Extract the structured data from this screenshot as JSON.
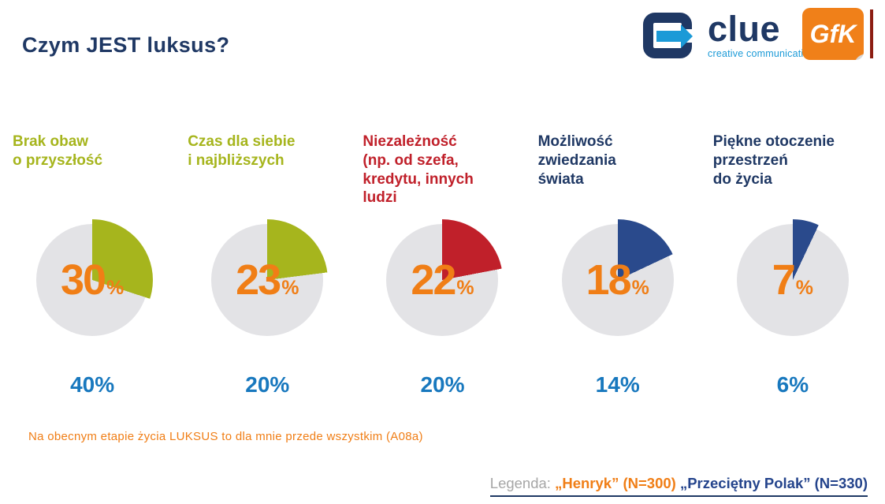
{
  "page": {
    "title": "Czym JEST luksus?"
  },
  "logos": {
    "clue_name": "clue",
    "clue_tagline": "creative communication",
    "gfk_name": "GfK"
  },
  "labels": {
    "percent": "%"
  },
  "colors": {
    "navy": "#1f3864",
    "olive": "#a6b51d",
    "red": "#c0202a",
    "wedge_navy": "#2a4a8c",
    "orange": "#f07e16",
    "blue": "#1878be",
    "pie_gray": "#e3e3e6",
    "legend_gray": "#a6a6a6",
    "clue_blue": "#1b9ad7",
    "gfk_orange": "#f08019",
    "legend_blue": "#24448c",
    "gfk_bar": "#8c1d12"
  },
  "chart_data": {
    "type": "pie",
    "title": "Czym JEST luksus?",
    "legend_position": "bottom-right",
    "categories": [
      "Brak obaw o przyszłość",
      "Czas dla siebie i najbliższych",
      "Niezależność (np. od szefa, kredytu, innych ludzi",
      "Możliwość zwiedzania świata",
      "Piękne otoczenie przestrzeń do życia"
    ],
    "series": [
      {
        "name": "„Henryk” (N=300)",
        "color": "#f07e16",
        "values": [
          30,
          23,
          22,
          18,
          7
        ]
      },
      {
        "name": "„Przeciętny Polak” (N=330)",
        "color": "#1878be",
        "values": [
          40,
          20,
          20,
          14,
          6
        ]
      }
    ],
    "items": [
      {
        "heading": "Brak obaw\no przyszłość",
        "heading_color": "#a6b51d",
        "wedge_color": "#a6b51d",
        "henryk": 30,
        "polak": 40,
        "polak_label": "40%"
      },
      {
        "heading": "Czas dla siebie\ni najbliższych",
        "heading_color": "#a6b51d",
        "wedge_color": "#a6b51d",
        "henryk": 23,
        "polak": 20,
        "polak_label": "20%"
      },
      {
        "heading": "Niezależność\n(np. od szefa,\nkredytu, innych\nludzi",
        "heading_color": "#c0202a",
        "wedge_color": "#c0202a",
        "henryk": 22,
        "polak": 20,
        "polak_label": "20%"
      },
      {
        "heading": "Możliwość\nzwiedzania\nświata",
        "heading_color": "#1f3864",
        "wedge_color": "#2a4a8c",
        "henryk": 18,
        "polak": 14,
        "polak_label": "14%"
      },
      {
        "heading": "Piękne otoczenie\nprzestrzeń\ndo życia",
        "heading_color": "#1f3864",
        "wedge_color": "#2a4a8c",
        "henryk": 7,
        "polak": 6,
        "polak_label": "6%"
      }
    ]
  },
  "footnote": "Na obecnym etapie życia LUKSUS to dla mnie przede wszystkim (A08a)",
  "legend": {
    "prefix": "Legenda:",
    "henryk": "„Henryk” (N=300)",
    "polak": "„Przeciętny Polak” (N=330)"
  }
}
